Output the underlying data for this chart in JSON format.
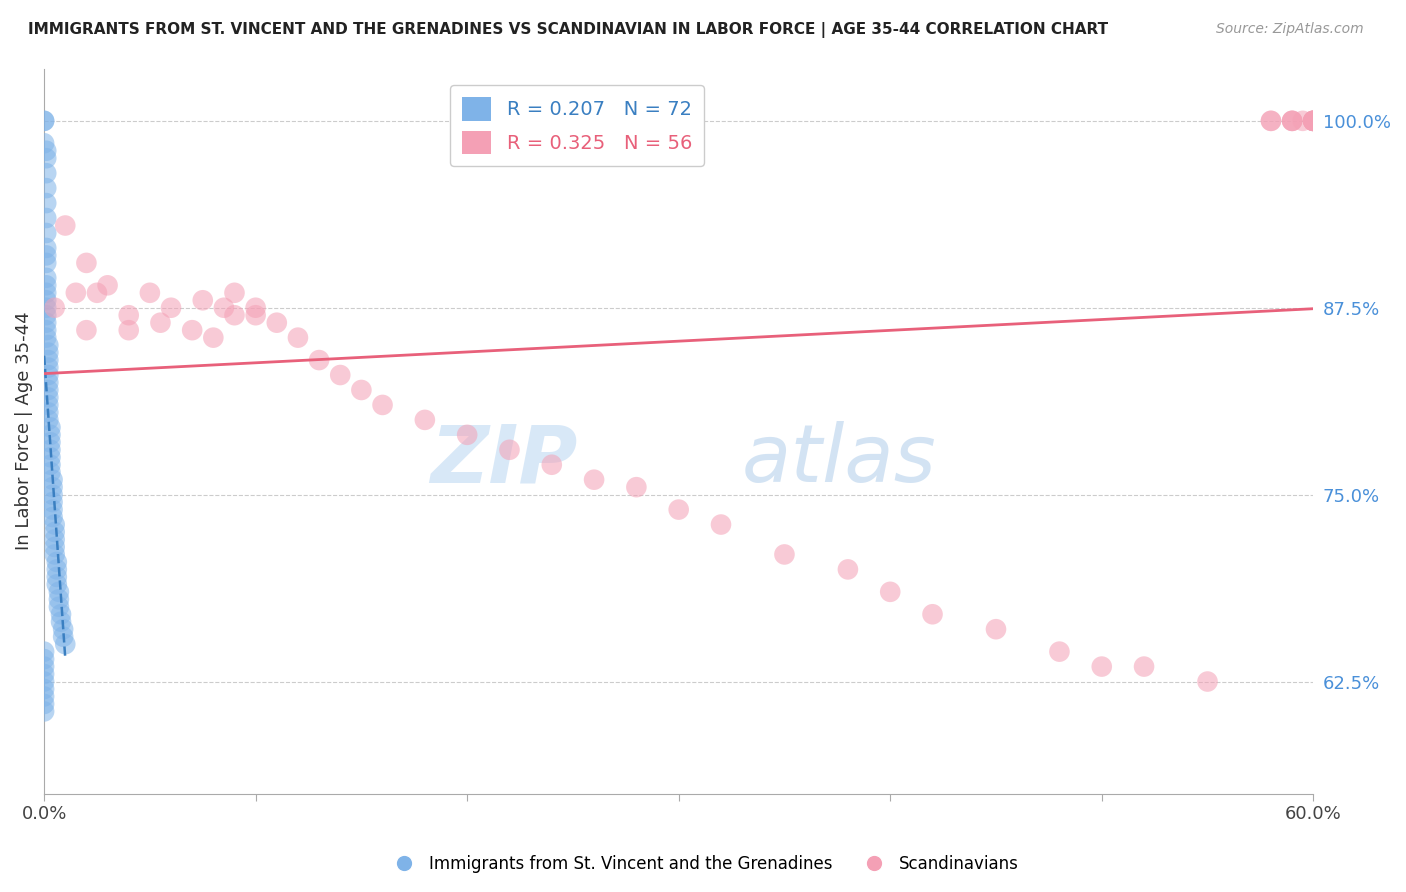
{
  "title": "IMMIGRANTS FROM ST. VINCENT AND THE GRENADINES VS SCANDINAVIAN IN LABOR FORCE | AGE 35-44 CORRELATION CHART",
  "source": "Source: ZipAtlas.com",
  "ylabel": "In Labor Force | Age 35-44",
  "legend1_label": "Immigrants from St. Vincent and the Grenadines",
  "legend2_label": "Scandinavians",
  "R1": 0.207,
  "N1": 72,
  "R2": 0.325,
  "N2": 56,
  "blue_color": "#7fb3e8",
  "pink_color": "#f4a0b5",
  "trend_blue_color": "#3a7fc1",
  "trend_pink_color": "#e8607a",
  "xlim": [
    0.0,
    0.6
  ],
  "ylim": [
    0.55,
    1.035
  ],
  "yticks": [
    0.625,
    0.75,
    0.875,
    1.0
  ],
  "ytick_labels": [
    "62.5%",
    "75.0%",
    "87.5%",
    "100.0%"
  ],
  "blue_x": [
    0.0,
    0.0,
    0.0,
    0.001,
    0.001,
    0.001,
    0.001,
    0.001,
    0.001,
    0.001,
    0.001,
    0.001,
    0.001,
    0.001,
    0.001,
    0.001,
    0.001,
    0.001,
    0.001,
    0.001,
    0.001,
    0.001,
    0.002,
    0.002,
    0.002,
    0.002,
    0.002,
    0.002,
    0.002,
    0.002,
    0.002,
    0.002,
    0.002,
    0.003,
    0.003,
    0.003,
    0.003,
    0.003,
    0.003,
    0.003,
    0.004,
    0.004,
    0.004,
    0.004,
    0.004,
    0.004,
    0.005,
    0.005,
    0.005,
    0.005,
    0.005,
    0.006,
    0.006,
    0.006,
    0.006,
    0.007,
    0.007,
    0.007,
    0.008,
    0.008,
    0.009,
    0.009,
    0.01,
    0.0,
    0.0,
    0.0,
    0.0,
    0.0,
    0.0,
    0.0,
    0.0,
    0.0
  ],
  "blue_y": [
    1.0,
    1.0,
    0.985,
    0.98,
    0.975,
    0.965,
    0.955,
    0.945,
    0.935,
    0.925,
    0.915,
    0.91,
    0.905,
    0.895,
    0.89,
    0.885,
    0.88,
    0.875,
    0.87,
    0.865,
    0.86,
    0.855,
    0.85,
    0.845,
    0.84,
    0.835,
    0.83,
    0.825,
    0.82,
    0.815,
    0.81,
    0.805,
    0.8,
    0.795,
    0.79,
    0.785,
    0.78,
    0.775,
    0.77,
    0.765,
    0.76,
    0.755,
    0.75,
    0.745,
    0.74,
    0.735,
    0.73,
    0.725,
    0.72,
    0.715,
    0.71,
    0.705,
    0.7,
    0.695,
    0.69,
    0.685,
    0.68,
    0.675,
    0.67,
    0.665,
    0.66,
    0.655,
    0.65,
    0.645,
    0.64,
    0.635,
    0.63,
    0.625,
    0.62,
    0.615,
    0.61,
    0.605
  ],
  "pink_x": [
    0.005,
    0.01,
    0.015,
    0.02,
    0.02,
    0.025,
    0.03,
    0.04,
    0.04,
    0.05,
    0.055,
    0.06,
    0.07,
    0.075,
    0.08,
    0.085,
    0.09,
    0.09,
    0.1,
    0.1,
    0.11,
    0.12,
    0.13,
    0.14,
    0.15,
    0.16,
    0.18,
    0.2,
    0.22,
    0.24,
    0.26,
    0.28,
    0.3,
    0.32,
    0.35,
    0.38,
    0.4,
    0.42,
    0.45,
    0.48,
    0.5,
    0.52,
    0.55,
    0.58,
    0.58,
    0.59,
    0.59,
    0.59,
    0.595,
    0.6,
    0.6,
    0.6,
    0.6,
    0.6,
    0.6,
    0.6
  ],
  "pink_y": [
    0.875,
    0.93,
    0.885,
    0.905,
    0.86,
    0.885,
    0.89,
    0.87,
    0.86,
    0.885,
    0.865,
    0.875,
    0.86,
    0.88,
    0.855,
    0.875,
    0.87,
    0.885,
    0.875,
    0.87,
    0.865,
    0.855,
    0.84,
    0.83,
    0.82,
    0.81,
    0.8,
    0.79,
    0.78,
    0.77,
    0.76,
    0.755,
    0.74,
    0.73,
    0.71,
    0.7,
    0.685,
    0.67,
    0.66,
    0.645,
    0.635,
    0.635,
    0.625,
    1.0,
    1.0,
    1.0,
    1.0,
    1.0,
    1.0,
    1.0,
    1.0,
    1.0,
    1.0,
    1.0,
    1.0,
    1.0
  ],
  "watermark_zip": "ZIP",
  "watermark_atlas": "atlas",
  "title_fontsize": 11,
  "source_fontsize": 10,
  "ylabel_fontsize": 13,
  "tick_right_color": "#4a90d9",
  "grid_color": "#cccccc",
  "bg_color": "#ffffff"
}
